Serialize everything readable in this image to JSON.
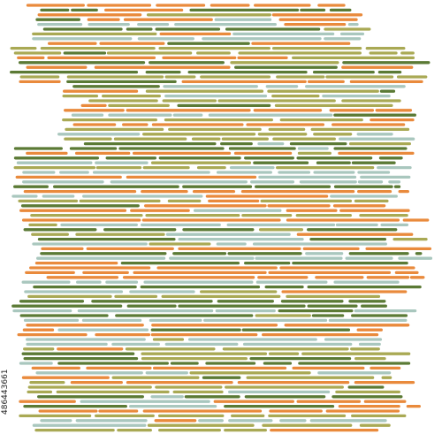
{
  "artwork": {
    "palette": {
      "orange": "#E98A3C",
      "sage": "#A9C7BE",
      "olive": "#A9A954",
      "dark_green": "#5B7A35"
    },
    "stroke_style": "rounded dashes in horizontal rows"
  },
  "watermark": {
    "stock_id": "486443661"
  }
}
